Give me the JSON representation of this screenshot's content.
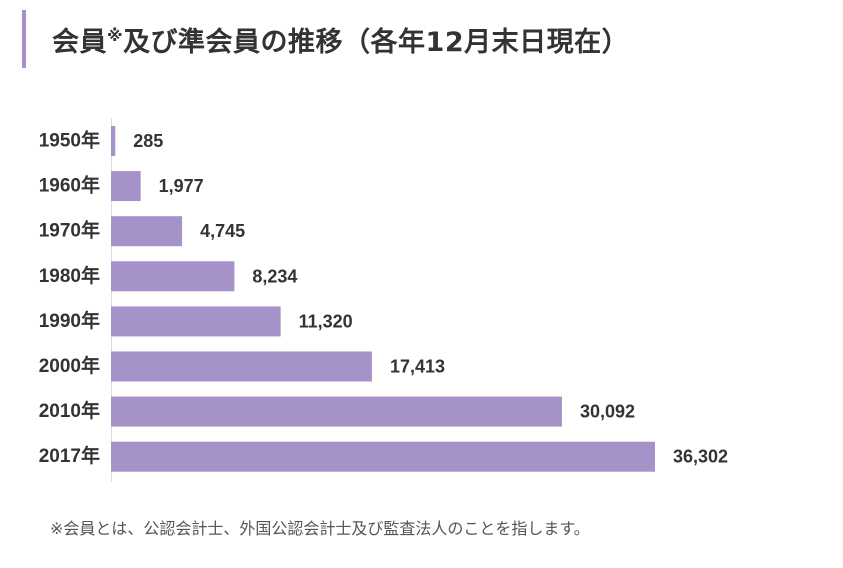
{
  "heading": {
    "title_main": "会員",
    "title_mark": "※",
    "title_rest": "及び準会員の推移（各年12月末日現在）"
  },
  "footnote": "※会員とは、公認会計士、外国公認会計士及び監査法人のことを指します。",
  "colors": {
    "bar": "#a592c8",
    "accent": "#a592c8",
    "text": "#333333"
  },
  "chart_data": {
    "type": "bar",
    "orientation": "horizontal",
    "categories": [
      "1950年",
      "1960年",
      "1970年",
      "1980年",
      "1990年",
      "2000年",
      "2010年",
      "2017年"
    ],
    "values": [
      285,
      1977,
      4745,
      8234,
      11320,
      17413,
      30092,
      36302
    ],
    "value_labels": [
      "285",
      "1,977",
      "4,745",
      "8,234",
      "11,320",
      "17,413",
      "30,092",
      "36,302"
    ]
  }
}
